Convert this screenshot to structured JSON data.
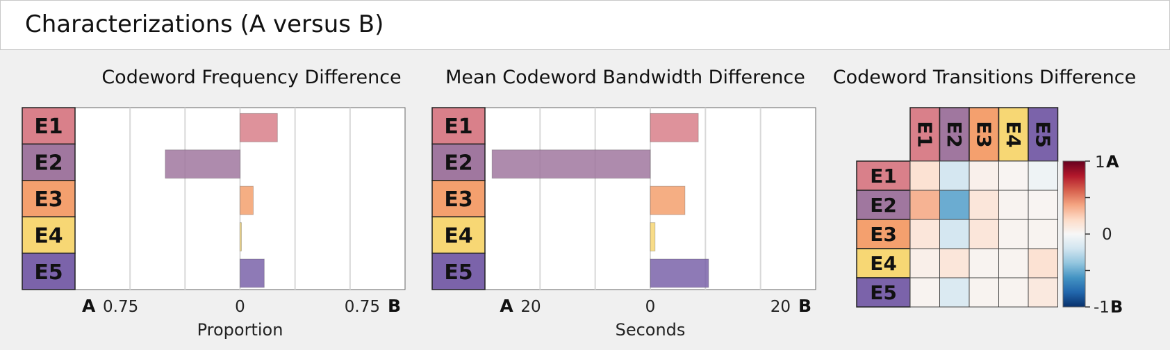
{
  "header": {
    "title": "Characterizations (A versus B)"
  },
  "codewords": [
    "E1",
    "E2",
    "E3",
    "E4",
    "E5"
  ],
  "colors": {
    "E1": "#d9808a",
    "E2": "#a0779f",
    "E3": "#f4a06e",
    "E4": "#f7d774",
    "E5": "#7b63aa",
    "panel_bg": "#f0f0f0",
    "cmap_neg": "#08306b",
    "cmap_zero": "#f7f7f7",
    "cmap_pos": "#8b0000"
  },
  "chart_data": [
    {
      "type": "bar",
      "orientation": "horizontal",
      "title": "Codeword Frequency Difference",
      "xlabel": "Proportion",
      "categories": [
        "E1",
        "E2",
        "E3",
        "E4",
        "E5"
      ],
      "values": [
        0.17,
        -0.34,
        0.06,
        0.005,
        0.11
      ],
      "xlim": [
        -0.75,
        0.75
      ],
      "ticks": [
        -0.75,
        0,
        0.75
      ],
      "tick_labels": [
        "0.75",
        "0",
        "0.75"
      ],
      "left_end_label": "A",
      "right_end_label": "B",
      "grid": true
    },
    {
      "type": "bar",
      "orientation": "horizontal",
      "title": "Mean Codeword Bandwidth Difference",
      "xlabel": "Seconds",
      "categories": [
        "E1",
        "E2",
        "E3",
        "E4",
        "E5"
      ],
      "values": [
        6.1,
        -20.1,
        4.4,
        0.6,
        7.4
      ],
      "xlim": [
        -21,
        21
      ],
      "ticks": [
        -20,
        0,
        20
      ],
      "tick_labels": [
        "20",
        "0",
        "20"
      ],
      "left_end_label": "A",
      "right_end_label": "B",
      "grid": true
    },
    {
      "type": "heatmap",
      "title": "Codeword Transitions Difference",
      "rows": [
        "E1",
        "E2",
        "E3",
        "E4",
        "E5"
      ],
      "cols": [
        "E1",
        "E2",
        "E3",
        "E4",
        "E5"
      ],
      "values": [
        [
          0.15,
          -0.18,
          0.05,
          0.02,
          -0.05
        ],
        [
          0.35,
          -0.5,
          0.12,
          0.03,
          0.02
        ],
        [
          0.12,
          -0.18,
          0.12,
          0.03,
          0.03
        ],
        [
          0.06,
          0.12,
          0.03,
          0.03,
          0.15
        ],
        [
          0.03,
          -0.15,
          0.03,
          0.03,
          0.1
        ]
      ],
      "vlim": [
        -1,
        1
      ],
      "colorbar": {
        "tick_labels": [
          "1",
          "0",
          "-1"
        ],
        "top_label": "A",
        "bottom_label": "B"
      }
    }
  ]
}
